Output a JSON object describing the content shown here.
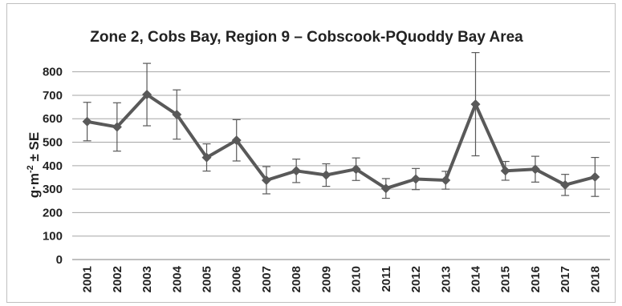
{
  "chart_data": {
    "type": "line",
    "title": "Zone 2, Cobs Bay, Region 9 – Cobscook-PQuoddy Bay Area",
    "ylabel_parts": [
      "g·m",
      "-2",
      " ± SE"
    ],
    "xlabel": "",
    "ylim": [
      0,
      850
    ],
    "yticks": [
      "0",
      "100",
      "200",
      "300",
      "400",
      "500",
      "600",
      "700",
      "800"
    ],
    "grid": true,
    "categories": [
      "2001",
      "2002",
      "2003",
      "2004",
      "2005",
      "2006",
      "2007",
      "2008",
      "2009",
      "2010",
      "2011",
      "2012",
      "2013",
      "2014",
      "2015",
      "2016",
      "2017",
      "2018"
    ],
    "series": [
      {
        "values": [
          588,
          565,
          703,
          618,
          435,
          508,
          338,
          378,
          360,
          385,
          303,
          343,
          338,
          662,
          378,
          385,
          318,
          352
        ],
        "err": [
          82,
          103,
          133,
          105,
          58,
          88,
          58,
          50,
          48,
          48,
          42,
          45,
          38,
          220,
          40,
          55,
          45,
          83
        ],
        "color": "#595959"
      }
    ]
  }
}
